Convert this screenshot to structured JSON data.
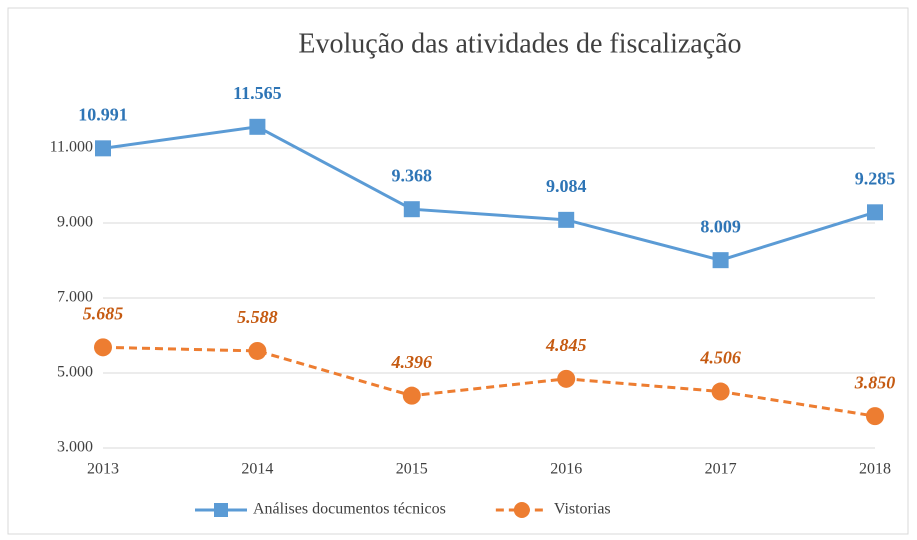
{
  "chart_data": {
    "type": "line",
    "title": "Evolução das atividades de fiscalização",
    "categories": [
      "2013",
      "2014",
      "2015",
      "2016",
      "2017",
      "2018"
    ],
    "series": [
      {
        "name": "Análises documentos técnicos",
        "color": "#5b9bd5",
        "label_color": "#2e75b6",
        "marker": "square",
        "line_style": "solid",
        "values": [
          10991,
          11565,
          9368,
          9084,
          8009,
          9285
        ],
        "value_labels": [
          "10.991",
          "11.565",
          "9.368",
          "9.084",
          "8.009",
          "9.285"
        ]
      },
      {
        "name": "Vistorias",
        "color": "#ed7d31",
        "label_color": "#c55a11",
        "marker": "circle",
        "line_style": "dashed",
        "values": [
          5685,
          5588,
          4396,
          4845,
          4506,
          3850
        ],
        "value_labels": [
          "5.685",
          "5.588",
          "4.396",
          "4.845",
          "4.506",
          "3.850"
        ]
      }
    ],
    "ylim": [
      3000,
      13000
    ],
    "yticks": [
      {
        "value": 3000,
        "label": "3.000"
      },
      {
        "value": 5000,
        "label": "5.000"
      },
      {
        "value": 7000,
        "label": "7.000"
      },
      {
        "value": 9000,
        "label": "9.000"
      },
      {
        "value": 11000,
        "label": "11.000"
      }
    ],
    "grid": true,
    "legend": "bottom"
  }
}
